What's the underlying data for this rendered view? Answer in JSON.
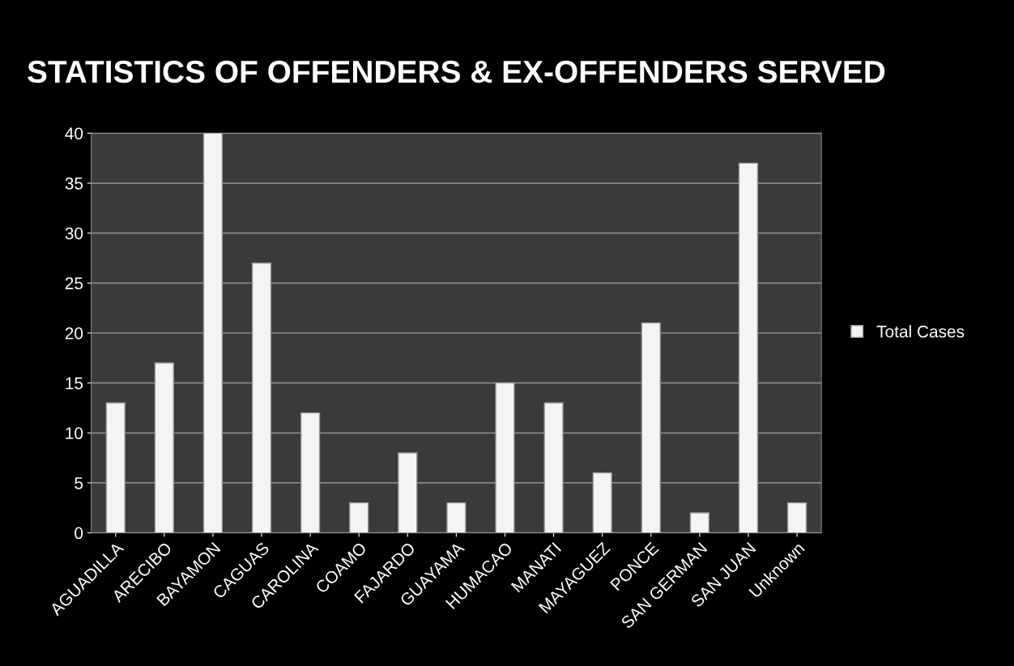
{
  "chart_data": {
    "type": "bar",
    "title": "STATISTICS OF OFFENDERS & EX-OFFENDERS SERVED",
    "categories": [
      "AGUADILLA",
      "ARECIBO",
      "BAYAMON",
      "CAGUAS",
      "CAROLINA",
      "COAMO",
      "FAJARDO",
      "GUAYAMA",
      "HUMACAO",
      "MANATI",
      "MAYAGUEZ",
      "PONCE",
      "SAN GERMAN",
      "SAN JUAN",
      "Unknown"
    ],
    "series": [
      {
        "name": "Total Cases",
        "color": "#f4f4f4",
        "values": [
          13,
          17,
          40,
          27,
          12,
          3,
          8,
          3,
          15,
          13,
          6,
          21,
          2,
          37,
          3
        ]
      }
    ],
    "ylim": [
      0,
      40
    ],
    "yticks": [
      0,
      5,
      10,
      15,
      20,
      25,
      30,
      35,
      40
    ],
    "grid": "y",
    "legend": "right"
  }
}
